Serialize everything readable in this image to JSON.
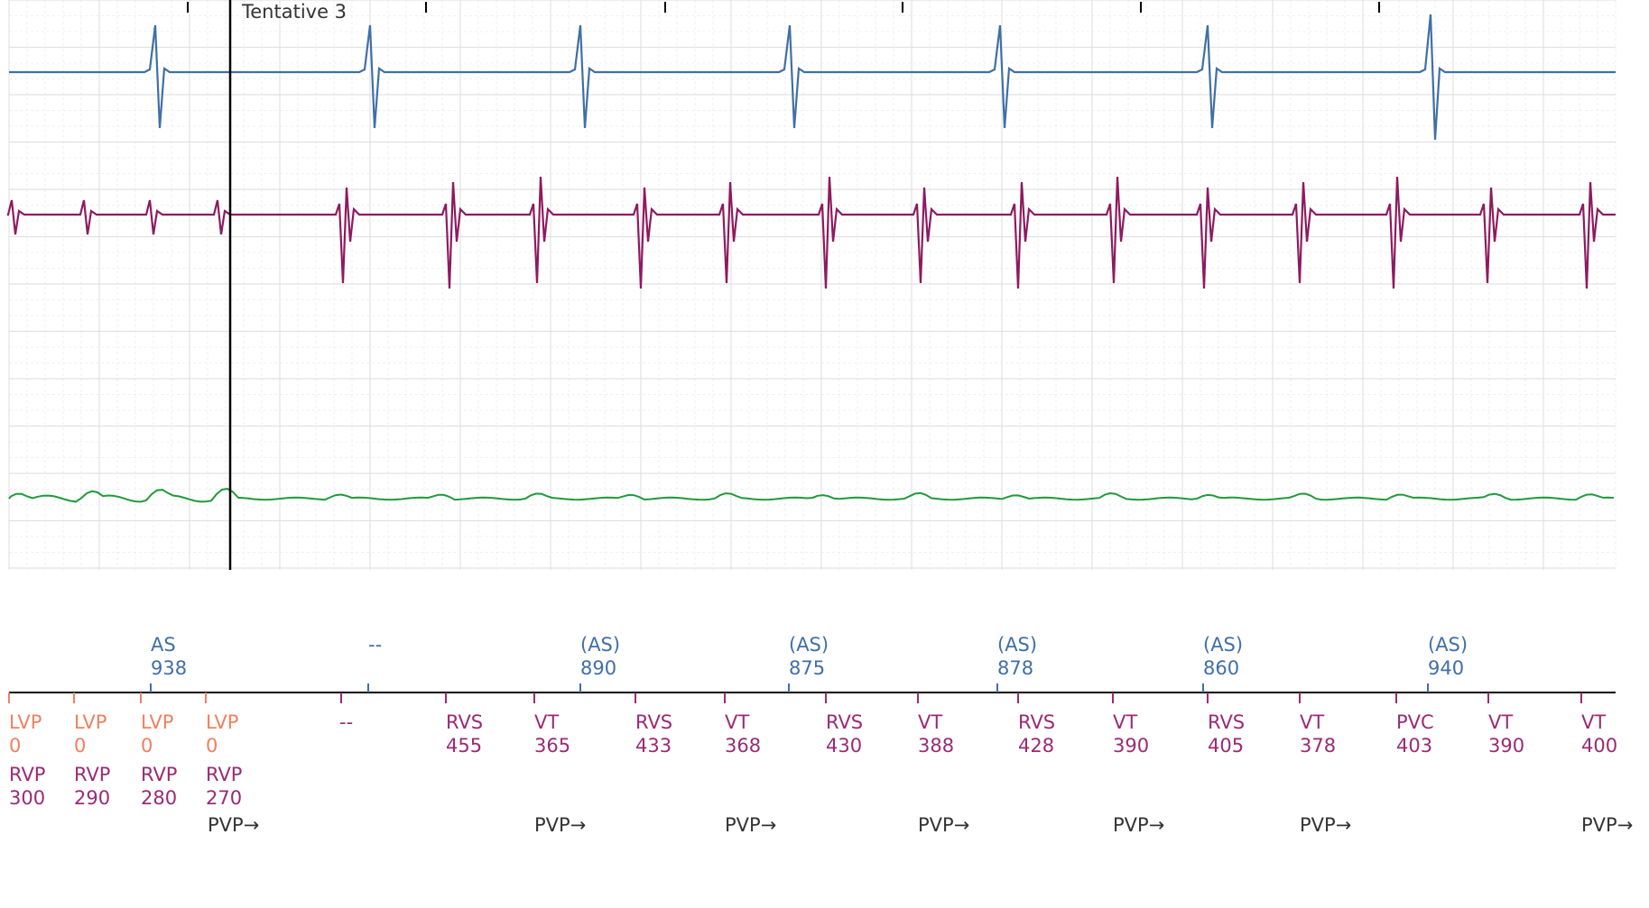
{
  "colors": {
    "atrial": "#3f6fa8",
    "ventricular": "#8e1a5f",
    "lv": "#f08060",
    "rv": "#9b2a75",
    "surface": "#1f9a3a",
    "marker_text": "#333333",
    "grid_major": "#e2e2e2",
    "grid_minor": "#ececec"
  },
  "cursor_label": "Tentative 3",
  "atrial_markers": [
    {
      "label": "AS",
      "value": "938"
    },
    {
      "label": "--",
      "value": ""
    },
    {
      "label": "(AS)",
      "value": "890"
    },
    {
      "label": "(AS)",
      "value": "875"
    },
    {
      "label": "(AS)",
      "value": "878"
    },
    {
      "label": "(AS)",
      "value": "860"
    },
    {
      "label": "(AS)",
      "value": "940"
    }
  ],
  "lv_markers": [
    {
      "label": "LVP",
      "value": "0"
    },
    {
      "label": "LVP",
      "value": "0"
    },
    {
      "label": "LVP",
      "value": "0"
    },
    {
      "label": "LVP",
      "value": "0"
    }
  ],
  "rv_paced_markers": [
    {
      "label": "RVP",
      "value": "300"
    },
    {
      "label": "RVP",
      "value": "290"
    },
    {
      "label": "RVP",
      "value": "280"
    },
    {
      "label": "RVP",
      "value": "270"
    }
  ],
  "dash_marker": "--",
  "ventricular_markers": [
    {
      "label": "RVS",
      "value": "455"
    },
    {
      "label": "VT",
      "value": "365"
    },
    {
      "label": "RVS",
      "value": "433"
    },
    {
      "label": "VT",
      "value": "368"
    },
    {
      "label": "RVS",
      "value": "430"
    },
    {
      "label": "VT",
      "value": "388"
    },
    {
      "label": "RVS",
      "value": "428"
    },
    {
      "label": "VT",
      "value": "390"
    },
    {
      "label": "RVS",
      "value": "405"
    },
    {
      "label": "VT",
      "value": "378"
    },
    {
      "label": "PVC",
      "value": "403"
    },
    {
      "label": "VT",
      "value": "390"
    },
    {
      "label": "VT",
      "value": "400"
    }
  ],
  "pvp_markers": [
    "PVP→",
    "PVP→",
    "PVP→",
    "PVP→",
    "PVP→",
    "PVP→",
    "PVP→"
  ]
}
